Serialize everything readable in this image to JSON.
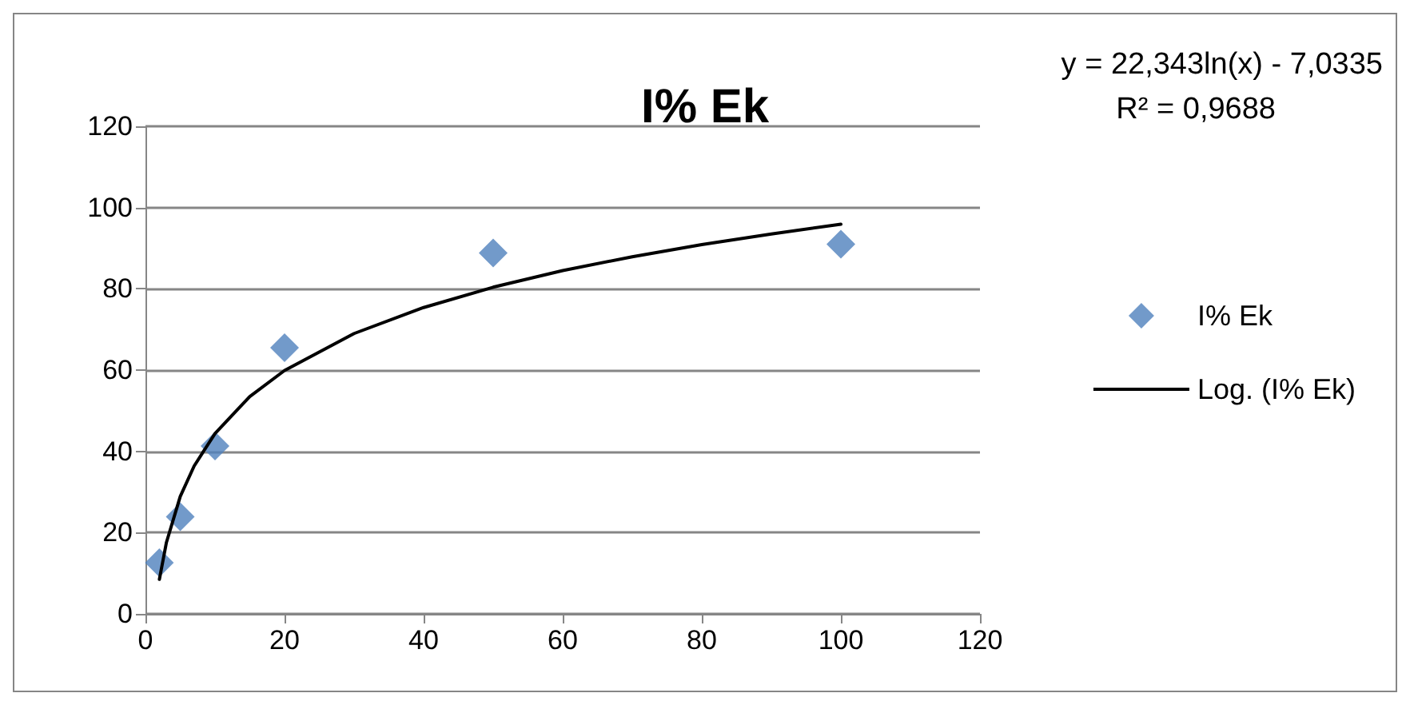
{
  "chart_data": {
    "type": "scatter",
    "title": "I% Ek",
    "x": [
      2,
      5,
      10,
      20,
      50,
      100
    ],
    "series": [
      {
        "name": "I% Ek",
        "color": "#4f81bd",
        "marker": "diamond",
        "values": [
          12.6,
          23.9,
          41.3,
          65.5,
          88.8,
          91.0
        ]
      },
      {
        "name": "Log. (I% Ek)",
        "type": "line",
        "color": "#000000",
        "marker": "none",
        "line_style": "solid",
        "x": [
          2,
          3,
          5,
          7,
          10,
          15,
          20,
          30,
          40,
          50,
          60,
          70,
          80,
          90,
          100
        ],
        "values": [
          8.5,
          17.5,
          28.9,
          36.4,
          44.4,
          53.5,
          59.9,
          69.0,
          75.4,
          80.4,
          84.5,
          87.9,
          90.9,
          93.5,
          95.9
        ]
      }
    ],
    "xlim": [
      0,
      120
    ],
    "xticks": [
      0,
      20,
      40,
      60,
      80,
      100,
      120
    ],
    "ylim": [
      0,
      120
    ],
    "yticks": [
      0,
      20,
      40,
      60,
      80,
      100,
      120
    ],
    "grid": "y",
    "legend": "right",
    "annotations": [
      "y = 22,343ln(x) - 7,0335",
      "R² = 0,9688"
    ]
  }
}
